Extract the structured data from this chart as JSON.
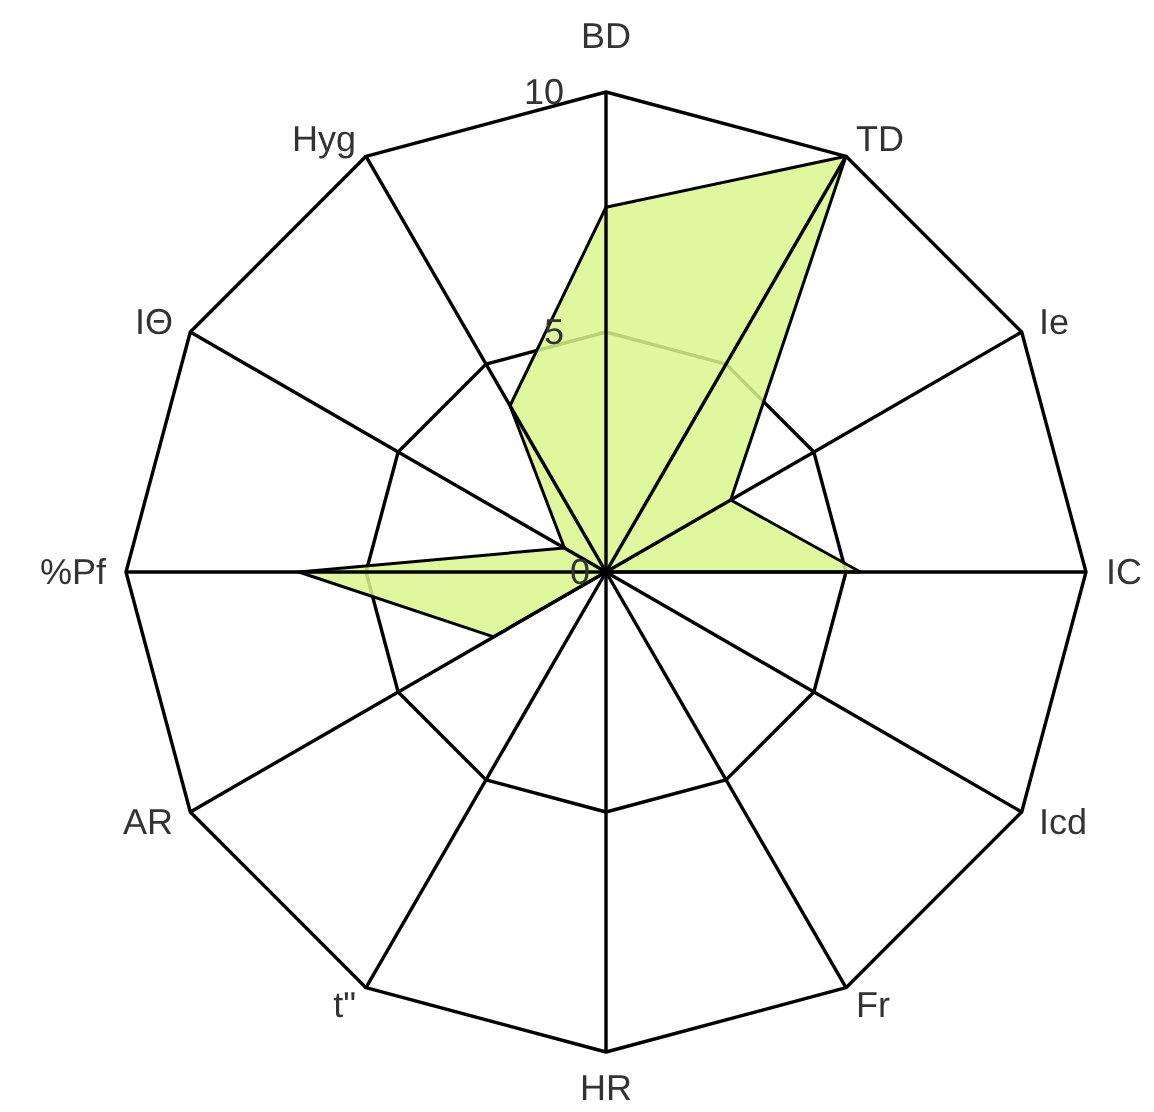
{
  "chart_data": {
    "type": "radar",
    "categories": [
      "BD",
      "TD",
      "Ie",
      "IC",
      "Icd",
      "Fr",
      "HR",
      "t\"",
      "AR",
      "%Pf",
      "IΘ",
      "Hyg"
    ],
    "series": [
      {
        "color": "#d9f78c",
        "values": [
          7.6,
          10,
          3,
          5.3,
          0,
          0,
          0,
          0,
          2.7,
          6.4,
          1,
          4
        ]
      }
    ],
    "ylim": [
      0,
      10
    ],
    "yticks": [
      0,
      5,
      10
    ],
    "grid": true
  }
}
